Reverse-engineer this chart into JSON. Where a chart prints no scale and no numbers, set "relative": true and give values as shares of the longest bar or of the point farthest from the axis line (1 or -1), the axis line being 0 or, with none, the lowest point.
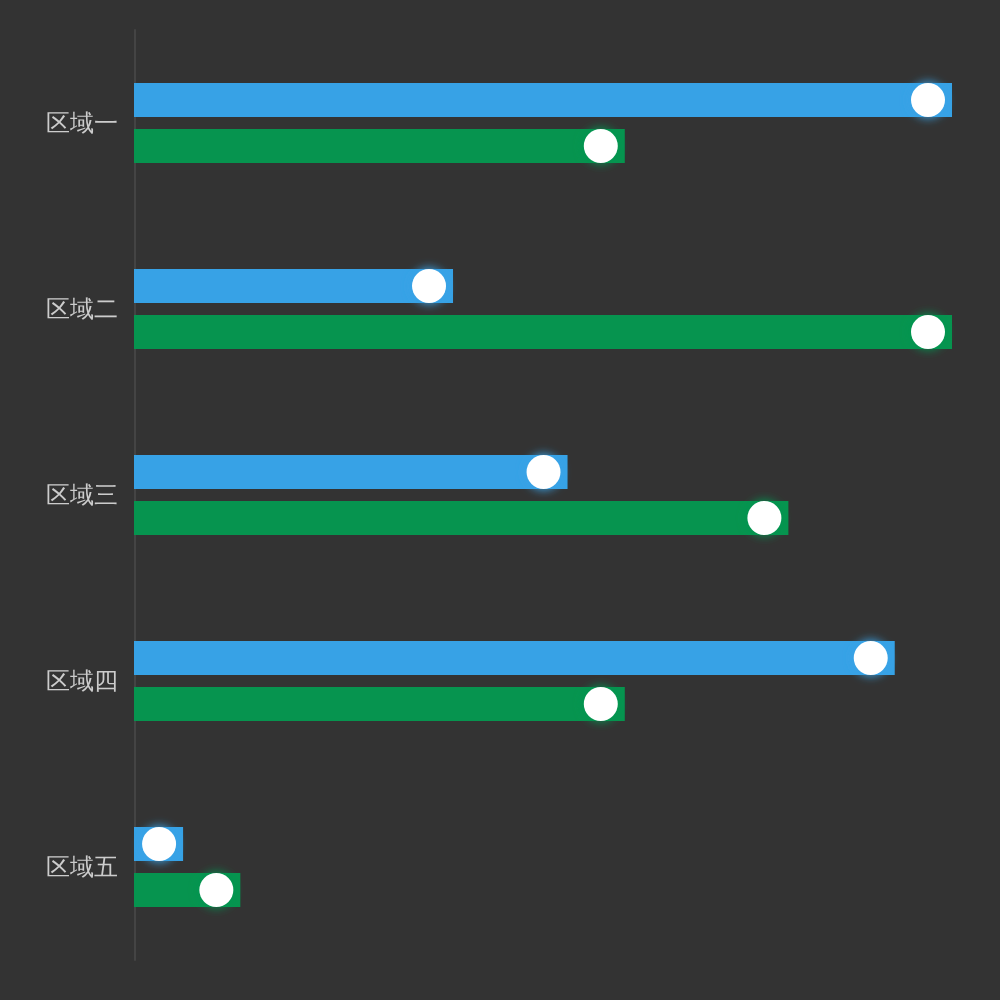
{
  "chart_data": {
    "type": "bar",
    "orientation": "horizontal",
    "relative": true,
    "categories": [
      "区域一",
      "区域二",
      "区域三",
      "区域四",
      "区域五"
    ],
    "series": [
      {
        "color": "#37a2e6",
        "values": [
          1.0,
          0.39,
          0.53,
          0.93,
          0.06
        ]
      },
      {
        "color": "#06944f",
        "values": [
          0.6,
          1.0,
          0.8,
          0.6,
          0.13
        ]
      }
    ],
    "legend": false
  }
}
